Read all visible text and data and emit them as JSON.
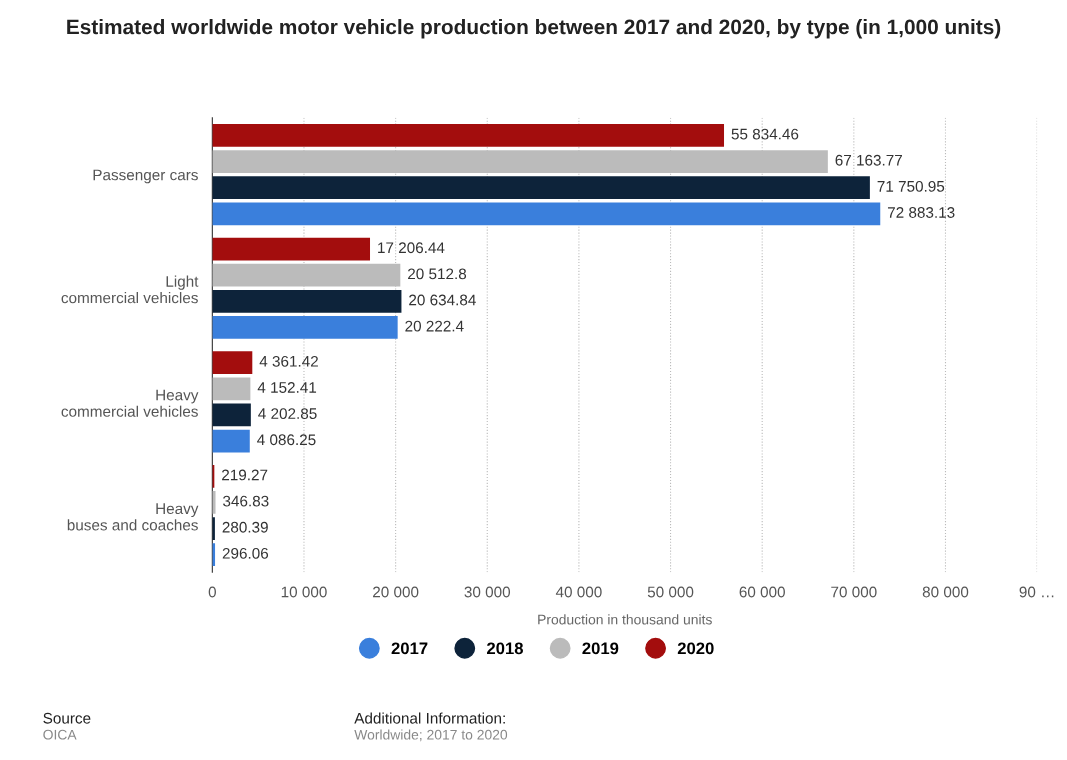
{
  "chart_data": {
    "type": "bar",
    "orientation": "horizontal",
    "title": "Estimated worldwide motor vehicle production between 2017 and 2020, by type (in 1,000 units)",
    "xlabel": "Production in thousand units",
    "categories": [
      "Passenger cars",
      "Light commercial vehicles",
      "Heavy commercial vehicles",
      "Heavy buses and coaches"
    ],
    "series": [
      {
        "name": "2017",
        "color": "#3a7fdc",
        "values": [
          72883.13,
          20222.4,
          4086.25,
          296.06
        ],
        "value_labels": [
          "72 883.13",
          "20 222.4",
          "4 086.25",
          "296.06"
        ]
      },
      {
        "name": "2018",
        "color": "#0d233a",
        "values": [
          71750.95,
          20634.84,
          4202.85,
          280.39
        ],
        "value_labels": [
          "71 750.95",
          "20 634.84",
          "4 202.85",
          "280.39"
        ]
      },
      {
        "name": "2019",
        "color": "#bbbbbb",
        "values": [
          67163.77,
          20512.8,
          4152.41,
          346.83
        ],
        "value_labels": [
          "67 163.77",
          "20 512.8",
          "4 152.41",
          "346.83"
        ]
      },
      {
        "name": "2020",
        "color": "#a30d0d",
        "values": [
          55834.46,
          17206.44,
          4361.42,
          219.27
        ],
        "value_labels": [
          "55 834.46",
          "17 206.44",
          "4 361.42",
          "219.27"
        ]
      }
    ],
    "xlim": [
      0,
      90000
    ],
    "xticks": [
      0,
      {
        "value": 10000,
        "label": "10 000"
      },
      {
        "value": 20000,
        "label": "20 000"
      },
      {
        "value": 30000,
        "label": "30 000"
      },
      {
        "value": 40000,
        "label": "40 000"
      },
      {
        "value": 50000,
        "label": "50 000"
      },
      {
        "value": 60000,
        "label": "60 000"
      },
      {
        "value": 70000,
        "label": "70 000"
      },
      {
        "value": 80000,
        "label": "80 000"
      },
      {
        "value": 90000,
        "label": "90 …"
      }
    ],
    "grid": "x",
    "legend": "bottom",
    "marker": "circle",
    "annotations": [
      "Source",
      "OICA",
      "Additional Information:",
      "Worldwide; 2017 to 2020"
    ]
  }
}
